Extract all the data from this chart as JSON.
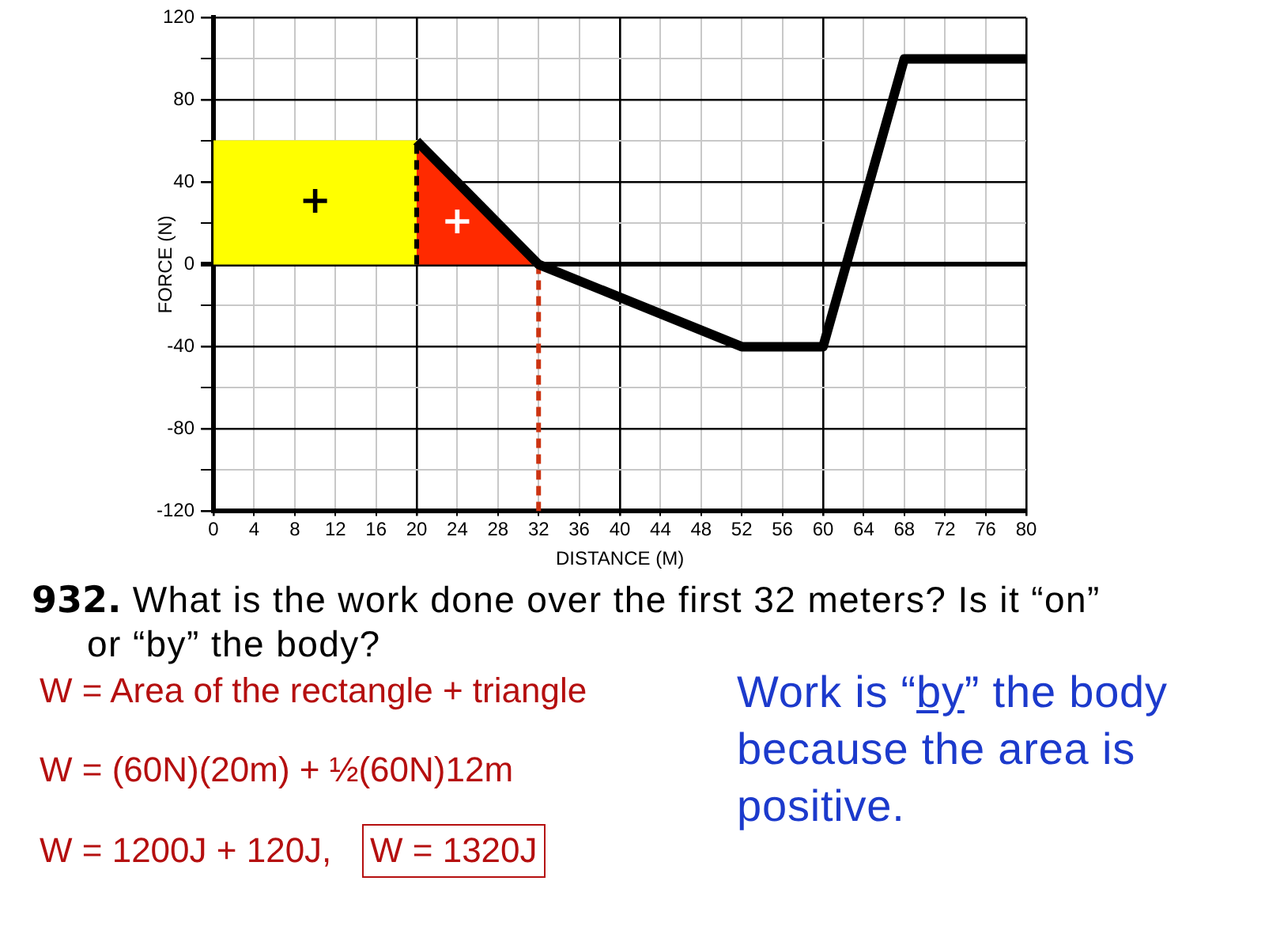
{
  "chart_data": {
    "type": "line",
    "xlabel": "DISTANCE (M)",
    "ylabel": "FORCE (N)",
    "xlim": [
      0,
      80
    ],
    "xticks": [
      0,
      4,
      8,
      12,
      16,
      20,
      24,
      28,
      32,
      36,
      40,
      44,
      48,
      52,
      56,
      60,
      64,
      68,
      72,
      76,
      80
    ],
    "ylim": [
      -120,
      120
    ],
    "yticks": [
      -120,
      {
        "value": -100,
        "label": null
      },
      -80,
      {
        "value": -60,
        "label": null
      },
      -40,
      {
        "value": -20,
        "label": null
      },
      0,
      {
        "value": 20,
        "label": null
      },
      40,
      {
        "value": 60,
        "label": null
      },
      80,
      {
        "value": 100,
        "label": null
      },
      120
    ],
    "grid": true,
    "series": [
      {
        "color": "#000000",
        "x": [
          20,
          32,
          52,
          60,
          68,
          80
        ],
        "values": [
          60,
          0,
          -40,
          -40,
          100,
          100
        ]
      },
      {
        "color": "#cc3311",
        "line_style": "dashed",
        "x": [
          32,
          32
        ],
        "values": [
          0,
          -120
        ]
      },
      {
        "color": "#000000",
        "line_style": "dashed",
        "x": [
          20,
          20
        ],
        "values": [
          0,
          60
        ]
      },
      {
        "type": "area",
        "color": "#ffff00",
        "x": [
          0,
          20
        ],
        "values": [
          60,
          60
        ]
      },
      {
        "type": "area",
        "color": "#ff2a00",
        "x": [
          20,
          32
        ],
        "values": [
          60,
          0
        ]
      }
    ],
    "annotations": [
      "+",
      "+",
      "932. What is the work done over the first 32 meters? Is it “on” or “by” the body?",
      "W = Area of the rectangle + triangle",
      "W = (60N)(20m) + ½(60N)12m",
      "W = 1200J + 120J,",
      "W = 1320J",
      "Work is “by” the body because the area is positive."
    ]
  }
}
